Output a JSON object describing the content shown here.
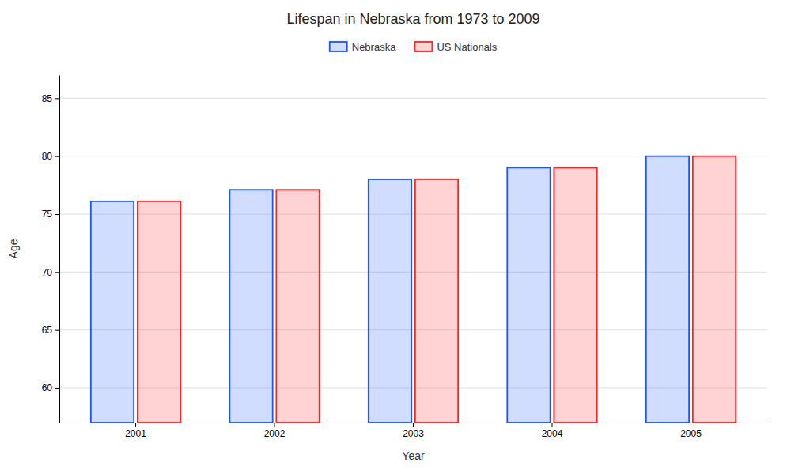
{
  "chart_data": {
    "type": "bar",
    "title": "Lifespan in Nebraska from 1973 to 2009",
    "x_label": "Year",
    "y_label": "Age",
    "categories": [
      "2001",
      "2002",
      "2003",
      "2004",
      "2005"
    ],
    "series": [
      {
        "name": "Nebraska",
        "color": "#1a56ff",
        "values": [
          76.1,
          77.1,
          78.0,
          79.0,
          80.0
        ]
      },
      {
        "name": "US Nationals",
        "color": "#ff2222",
        "values": [
          76.1,
          77.1,
          78.0,
          79.0,
          80.0
        ]
      }
    ],
    "ylim": [
      57,
      87
    ],
    "yticks": [
      60,
      65,
      70,
      75,
      80,
      85
    ],
    "grid": true,
    "legend": "top"
  }
}
